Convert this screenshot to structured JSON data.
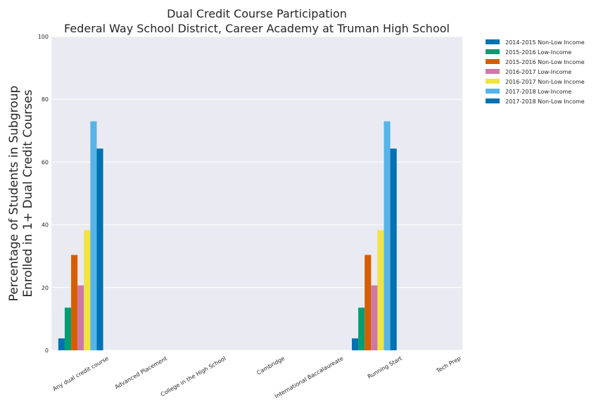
{
  "chart_data": {
    "type": "bar",
    "title": "Dual Credit Course Participation",
    "subtitle": "Federal Way School District, Career Academy at Truman High School",
    "ylabel_line1": "Percentage of Students in Subgroup",
    "ylabel_line2": "Enrolled in 1+ Dual Credit Courses",
    "xlabel": "",
    "ylim": [
      0,
      100
    ],
    "yticks": [
      0,
      20,
      40,
      60,
      80,
      100
    ],
    "ytick_labels": [
      "0",
      "20",
      "40",
      "60",
      "80",
      "100"
    ],
    "grid": true,
    "legend_position": "outside-top-right",
    "categories": [
      "Any dual credit course",
      "Advanced Placement",
      "College in the High School",
      "Cambridge",
      "International Baccalaureate",
      "Running Start",
      "Tech Prep"
    ],
    "series": [
      {
        "name": "2014-2015 Non-Low Income",
        "color": "#0072b2",
        "values": [
          3.8,
          0,
          0,
          0,
          0,
          3.8,
          0
        ]
      },
      {
        "name": "2015-2016 Low-Income",
        "color": "#009e73",
        "values": [
          13.6,
          0,
          0,
          0,
          0,
          13.6,
          0
        ]
      },
      {
        "name": "2015-2016 Non-Low Income",
        "color": "#d55e00",
        "values": [
          30.4,
          0,
          0,
          0,
          0,
          30.4,
          0
        ]
      },
      {
        "name": "2016-2017 Low-Income",
        "color": "#cc79a7",
        "values": [
          20.7,
          0,
          0,
          0,
          0,
          20.7,
          0
        ]
      },
      {
        "name": "2016-2017 Non-Low Income",
        "color": "#f0e442",
        "values": [
          38.3,
          0,
          0,
          0,
          0,
          38.3,
          0
        ]
      },
      {
        "name": "2017-2018 Low-Income",
        "color": "#56b4e9",
        "values": [
          73.0,
          0,
          0,
          0,
          0,
          73.0,
          0
        ]
      },
      {
        "name": "2017-2018 Non-Low Income",
        "color": "#0072b2",
        "values": [
          64.3,
          0,
          0,
          0,
          0,
          64.3,
          0
        ]
      }
    ]
  }
}
